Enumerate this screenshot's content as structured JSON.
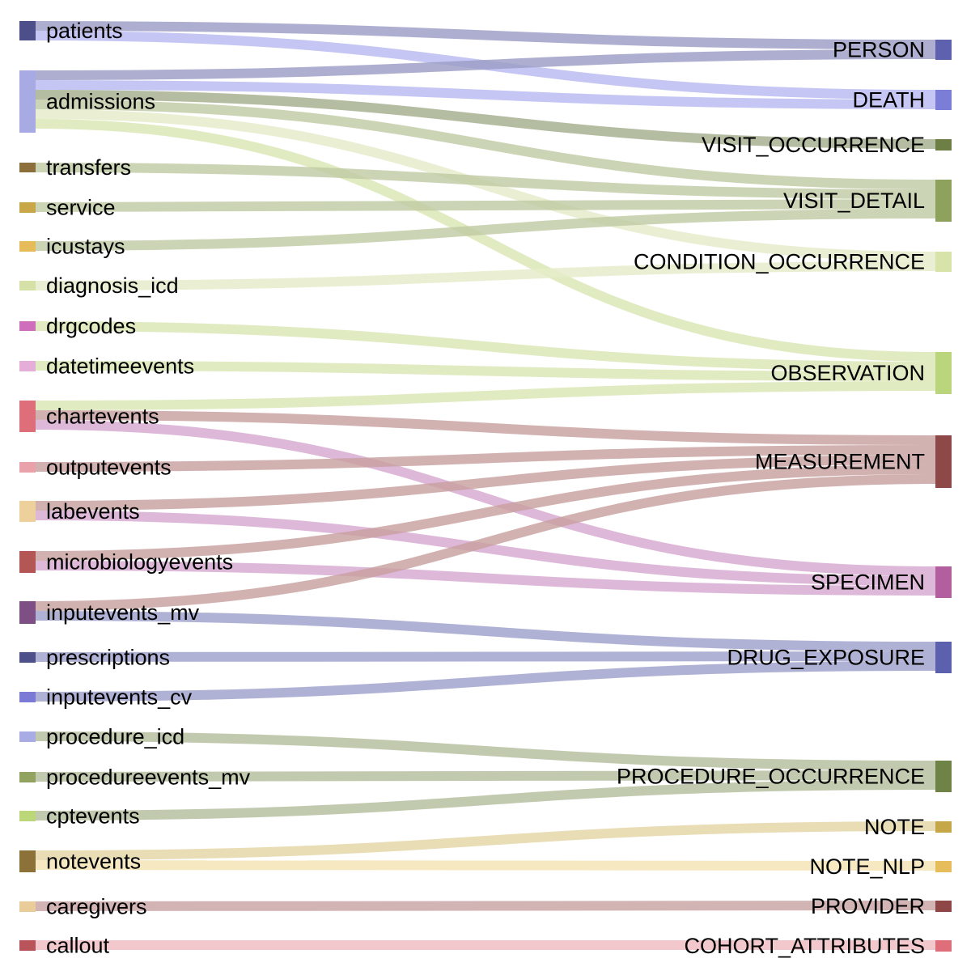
{
  "sources": [
    {
      "name": "patients",
      "color": "#4d4f8a"
    },
    {
      "name": "admissions",
      "color": "#a8aae3"
    },
    {
      "name": "transfers",
      "color": "#8c6f3a"
    },
    {
      "name": "service",
      "color": "#c7a748"
    },
    {
      "name": "icustays",
      "color": "#e6bc5a"
    },
    {
      "name": "diagnosis_icd",
      "color": "#d6e1a8"
    },
    {
      "name": "drgcodes",
      "color": "#cf6fbc"
    },
    {
      "name": "datetimeevents",
      "color": "#e4aed8"
    },
    {
      "name": "chartevents",
      "color": "#de6e79"
    },
    {
      "name": "outputevents",
      "color": "#eaa2aa"
    },
    {
      "name": "labevents",
      "color": "#edd09c"
    },
    {
      "name": "microbiologyevents",
      "color": "#b35654"
    },
    {
      "name": "inputevents_mv",
      "color": "#7d4f84"
    },
    {
      "name": "prescriptions",
      "color": "#4e508a"
    },
    {
      "name": "inputevents_cv",
      "color": "#7b7bd5"
    },
    {
      "name": "procedure_icd",
      "color": "#a9abe4"
    },
    {
      "name": "procedureevents_mv",
      "color": "#92a35f"
    },
    {
      "name": "cptevents",
      "color": "#bcd77a"
    },
    {
      "name": "notevents",
      "color": "#8c7238"
    },
    {
      "name": "caregivers",
      "color": "#e9cc99"
    },
    {
      "name": "callout",
      "color": "#b8545a"
    }
  ],
  "targets": [
    {
      "name": "PERSON",
      "color": "#5e62ae"
    },
    {
      "name": "DEATH",
      "color": "#7b7ed6"
    },
    {
      "name": "VISIT_OCCURRENCE",
      "color": "#6d7f45"
    },
    {
      "name": "VISIT_DETAIL",
      "color": "#8fa25d"
    },
    {
      "name": "CONDITION_OCCURRENCE",
      "color": "#d8e3aa"
    },
    {
      "name": "OBSERVATION",
      "color": "#bad57b"
    },
    {
      "name": "MEASUREMENT",
      "color": "#8e4848"
    },
    {
      "name": "SPECIMEN",
      "color": "#b35e9e"
    },
    {
      "name": "DRUG_EXPOSURE",
      "color": "#5c61ae"
    },
    {
      "name": "PROCEDURE_OCCURRENCE",
      "color": "#6e8345"
    },
    {
      "name": "NOTE",
      "color": "#c6a747"
    },
    {
      "name": "NOTE_NLP",
      "color": "#e7bc5a"
    },
    {
      "name": "PROVIDER",
      "color": "#8e4646"
    },
    {
      "name": "COHORT_ATTRIBUTES",
      "color": "#de6e79"
    }
  ],
  "links": [
    {
      "source": "patients",
      "target": "PERSON",
      "value": 1,
      "color": "#9c9dc6"
    },
    {
      "source": "patients",
      "target": "DEATH",
      "value": 1,
      "color": "#b8baf0"
    },
    {
      "source": "admissions",
      "target": "PERSON",
      "value": 1,
      "color": "#9c9dc6"
    },
    {
      "source": "admissions",
      "target": "DEATH",
      "value": 1,
      "color": "#b8baf0"
    },
    {
      "source": "admissions",
      "target": "VISIT_OCCURRENCE",
      "value": 1,
      "color": "#a3ae8c"
    },
    {
      "source": "admissions",
      "target": "VISIT_DETAIL",
      "value": 1,
      "color": "#bfcba4"
    },
    {
      "source": "admissions",
      "target": "CONDITION_OCCURRENCE",
      "value": 1,
      "color": "#e5ecc9"
    },
    {
      "source": "admissions",
      "target": "OBSERVATION",
      "value": 1,
      "color": "#d9e7b3"
    },
    {
      "source": "transfers",
      "target": "VISIT_DETAIL",
      "value": 1,
      "color": "#bfcba4"
    },
    {
      "source": "service",
      "target": "VISIT_DETAIL",
      "value": 1,
      "color": "#bfcba4"
    },
    {
      "source": "icustays",
      "target": "VISIT_DETAIL",
      "value": 1,
      "color": "#bfcba4"
    },
    {
      "source": "diagnosis_icd",
      "target": "CONDITION_OCCURRENCE",
      "value": 1,
      "color": "#e5ecc9"
    },
    {
      "source": "drgcodes",
      "target": "OBSERVATION",
      "value": 1,
      "color": "#d9e7b3"
    },
    {
      "source": "datetimeevents",
      "target": "OBSERVATION",
      "value": 1,
      "color": "#d9e7b3"
    },
    {
      "source": "chartevents",
      "target": "OBSERVATION",
      "value": 1,
      "color": "#d9e7b3"
    },
    {
      "source": "chartevents",
      "target": "MEASUREMENT",
      "value": 1,
      "color": "#c8a0a0"
    },
    {
      "source": "chartevents",
      "target": "SPECIMEN",
      "value": 1,
      "color": "#d6a8cf"
    },
    {
      "source": "outputevents",
      "target": "MEASUREMENT",
      "value": 1,
      "color": "#c8a0a0"
    },
    {
      "source": "labevents",
      "target": "MEASUREMENT",
      "value": 1,
      "color": "#c8a0a0"
    },
    {
      "source": "labevents",
      "target": "SPECIMEN",
      "value": 1,
      "color": "#d6a8cf"
    },
    {
      "source": "microbiologyevents",
      "target": "MEASUREMENT",
      "value": 1,
      "color": "#c8a0a0"
    },
    {
      "source": "microbiologyevents",
      "target": "SPECIMEN",
      "value": 1,
      "color": "#d6a8cf"
    },
    {
      "source": "inputevents_mv",
      "target": "MEASUREMENT",
      "value": 1,
      "color": "#c8a0a0"
    },
    {
      "source": "inputevents_mv",
      "target": "DRUG_EXPOSURE",
      "value": 1,
      "color": "#9fa1cc"
    },
    {
      "source": "prescriptions",
      "target": "DRUG_EXPOSURE",
      "value": 1,
      "color": "#9fa1cc"
    },
    {
      "source": "inputevents_cv",
      "target": "DRUG_EXPOSURE",
      "value": 1,
      "color": "#9fa1cc"
    },
    {
      "source": "procedure_icd",
      "target": "PROCEDURE_OCCURRENCE",
      "value": 1,
      "color": "#b3bd9c"
    },
    {
      "source": "procedureevents_mv",
      "target": "PROCEDURE_OCCURRENCE",
      "value": 1,
      "color": "#b3bd9c"
    },
    {
      "source": "cptevents",
      "target": "PROCEDURE_OCCURRENCE",
      "value": 1,
      "color": "#b3bd9c"
    },
    {
      "source": "notevents",
      "target": "NOTE",
      "value": 1,
      "color": "#e4d6a6"
    },
    {
      "source": "notevents",
      "target": "NOTE_NLP",
      "value": 1,
      "color": "#f4e3b3"
    },
    {
      "source": "caregivers",
      "target": "PROVIDER",
      "value": 1,
      "color": "#c9a3a3"
    },
    {
      "source": "callout",
      "target": "COHORT_ATTRIBUTES",
      "value": 1,
      "color": "#f0bcc2"
    }
  ]
}
